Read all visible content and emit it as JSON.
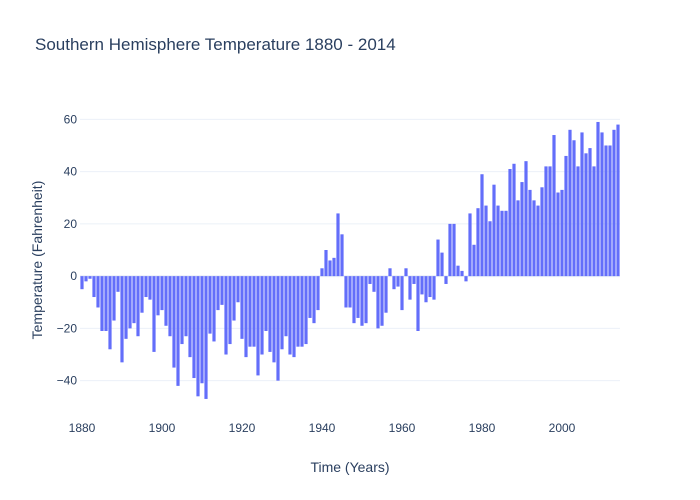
{
  "chart_data": {
    "type": "bar",
    "title": "Southern Hemisphere Temperature 1880 - 2014",
    "xlabel": "Time (Years)",
    "ylabel": "Temperature (Fahrenheit)",
    "xlim": [
      1879.5,
      2014.5
    ],
    "ylim": [
      -52,
      72
    ],
    "x_ticks": [
      1880,
      1900,
      1920,
      1940,
      1960,
      1980,
      2000
    ],
    "y_ticks": [
      -40,
      -20,
      0,
      20,
      40,
      60
    ],
    "grid": true,
    "bar_color": "#636efa",
    "start_year": 1880,
    "values": [
      -5,
      -2,
      -1,
      -8,
      -12,
      -21,
      -21,
      -28,
      -17,
      -6,
      -33,
      -24,
      -20,
      -18,
      -23,
      -14,
      -8,
      -9,
      -29,
      -15,
      -13,
      -19,
      -23,
      -35,
      -42,
      -26,
      -23,
      -31,
      -39,
      -46,
      -41,
      -47,
      -22,
      -25,
      -13,
      -11,
      -30,
      -26,
      -17,
      -10,
      -24,
      -31,
      -27,
      -27,
      -38,
      -30,
      -21,
      -29,
      -33,
      -40,
      -28,
      -23,
      -30,
      -31,
      -27,
      -27,
      -26,
      -16,
      -18,
      -13,
      3,
      10,
      6,
      7,
      24,
      16,
      -12,
      -12,
      -18,
      -16,
      -19,
      -18,
      -3,
      -6,
      -20,
      -19,
      -14,
      3,
      -5,
      -4,
      -13,
      3,
      -9,
      -3,
      -21,
      -7,
      -10,
      -8,
      -9,
      14,
      9,
      -3,
      20,
      20,
      4,
      2,
      -2,
      24,
      12,
      26,
      39,
      27,
      21,
      35,
      27,
      25,
      25,
      41,
      43,
      29,
      36,
      44,
      33,
      29,
      27,
      34,
      42,
      42,
      54,
      32,
      33,
      46,
      56,
      52,
      42,
      55,
      47,
      49,
      42,
      59,
      55,
      50,
      50,
      56,
      58
    ]
  }
}
